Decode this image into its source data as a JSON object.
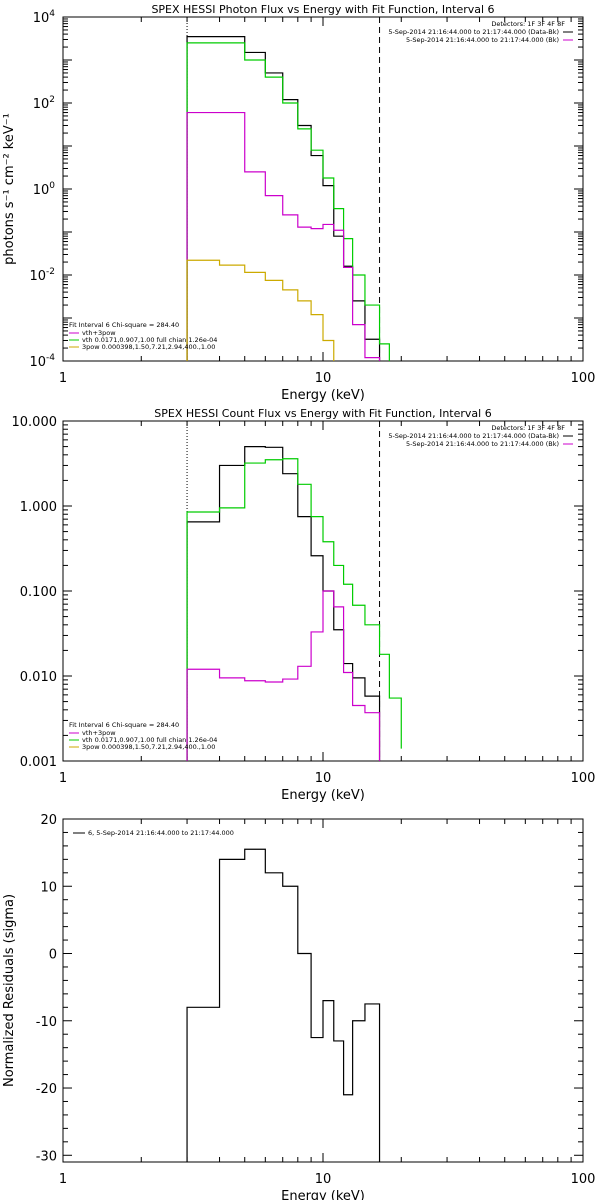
{
  "chart_data": [
    {
      "type": "line",
      "title": "SPEX HESSI Photon Flux vs Energy with Fit Function, Interval 6",
      "xlabel": "Energy (keV)",
      "ylabel": "photons s⁻¹ cm⁻² keV⁻¹",
      "xscale": "log",
      "yscale": "log",
      "xlim": [
        1,
        100
      ],
      "ylim": [
        0.0001,
        10000
      ],
      "xticks": [
        {
          "v": 1,
          "label": "1"
        },
        {
          "v": 10,
          "label": "10"
        },
        {
          "v": 100,
          "label": "100"
        }
      ],
      "yticks": [
        {
          "v": 0.0001,
          "base": "10",
          "exp": "-4"
        },
        {
          "v": 0.01,
          "base": "10",
          "exp": "-2"
        },
        {
          "v": 1,
          "base": "10",
          "exp": "0"
        },
        {
          "v": 100,
          "base": "10",
          "exp": "2"
        },
        {
          "v": 10000,
          "base": "10",
          "exp": "4"
        }
      ],
      "vlines": [
        {
          "x": 3.0,
          "style": "dotted"
        },
        {
          "x": 16.5,
          "style": "dashed"
        }
      ],
      "legend_top": [
        "Detectors: 1F 3F 4F 8F",
        "5-Sep-2014 21:16:44.000 to 21:17:44.000 (Data-Bk)",
        "5-Sep-2014 21:16:44.000 to 21:17:44.000 (Bk)"
      ],
      "legend_bottom_head": "Fit Interval  6    Chi-square = 284.40",
      "legend_bottom": [
        "vth+3pow",
        "vth 0.0171,0.907,1.00  full chian 1.26e-04",
        "3pow 0.000398,1.50,7.21,2.94,400.,1.00"
      ],
      "series": [
        {
          "color": "#000000",
          "edges": [
            3.0,
            4.0,
            5.0,
            6.0,
            7.0,
            8.0,
            9.0,
            10.0,
            11.0,
            12.0,
            13.0,
            14.5,
            16.5
          ],
          "values": [
            3500,
            3500,
            1500,
            500,
            120,
            30,
            6,
            1.2,
            0.08,
            0.016,
            0.0025,
            0.00032
          ]
        },
        {
          "color": "#00cc00",
          "edges": [
            3.0,
            4.0,
            5.0,
            6.0,
            7.0,
            8.0,
            9.0,
            10.0,
            11.0,
            12.0,
            13.0,
            14.5,
            16.5,
            18.0
          ],
          "values": [
            2500,
            2500,
            1000,
            400,
            100,
            25,
            8,
            1.8,
            0.35,
            0.07,
            0.01,
            0.002,
            0.00025
          ]
        },
        {
          "color": "#cc00cc",
          "edges": [
            3.0,
            4.0,
            5.0,
            6.0,
            7.0,
            8.0,
            9.0,
            10.0,
            11.0,
            12.0,
            13.0,
            14.5,
            16.5
          ],
          "values": [
            60,
            60,
            2.5,
            0.7,
            0.25,
            0.13,
            0.12,
            0.15,
            0.11,
            0.015,
            0.0007,
            0.00012
          ]
        },
        {
          "color": "#ccaa00",
          "edges": [
            3.0,
            4.0,
            5.0,
            6.0,
            7.0,
            8.0,
            9.0,
            10.0,
            11.0
          ],
          "values": [
            0.022,
            0.017,
            0.0115,
            0.0075,
            0.0045,
            0.0025,
            0.0012,
            0.0003
          ]
        }
      ]
    },
    {
      "type": "line",
      "title": "SPEX HESSI Count Flux vs Energy with Fit Function, Interval 6",
      "xlabel": "Energy (keV)",
      "xscale": "log",
      "yscale": "log",
      "xlim": [
        1,
        100
      ],
      "ylim": [
        0.001,
        10
      ],
      "xticks": [
        {
          "v": 1,
          "label": "1"
        },
        {
          "v": 10,
          "label": "10"
        },
        {
          "v": 100,
          "label": "100"
        }
      ],
      "yticks": [
        {
          "v": 0.001,
          "label": "0.001"
        },
        {
          "v": 0.01,
          "label": "0.010"
        },
        {
          "v": 0.1,
          "label": "0.100"
        },
        {
          "v": 1,
          "label": "1.000"
        },
        {
          "v": 10,
          "label": "10.000"
        }
      ],
      "vlines": [
        {
          "x": 3.0,
          "style": "dotted"
        },
        {
          "x": 16.5,
          "style": "dashed"
        }
      ],
      "legend_top": [
        "Detectors: 1F 3F 4F 8F",
        "5-Sep-2014 21:16:44.000 to 21:17:44.000 (Data-Bk)",
        "5-Sep-2014 21:16:44.000 to 21:17:44.000 (Bk)"
      ],
      "legend_bottom_head": "Fit Interval  6    Chi-square = 284.40",
      "legend_bottom": [
        "vth+3pow",
        "vth 0.0171,0.907,1.00  full chian 1.26e-04",
        "3pow 0.000398,1.50,7.21,2.94,400.,1.00"
      ],
      "series": [
        {
          "color": "#000000",
          "edges": [
            3.0,
            4.0,
            5.0,
            6.0,
            7.0,
            8.0,
            9.0,
            10.0,
            11.0,
            12.0,
            13.0,
            14.5,
            16.5
          ],
          "values": [
            0.65,
            3.0,
            5.0,
            4.9,
            2.4,
            0.75,
            0.26,
            0.1,
            0.035,
            0.014,
            0.0095,
            0.0058
          ]
        },
        {
          "color": "#00cc00",
          "edges": [
            3.0,
            4.0,
            5.0,
            6.0,
            7.0,
            8.0,
            9.0,
            10.0,
            11.0,
            12.0,
            13.0,
            14.5,
            16.5,
            18.0,
            20.0
          ],
          "values": [
            0.85,
            0.95,
            3.2,
            3.5,
            3.6,
            1.8,
            0.75,
            0.38,
            0.2,
            0.12,
            0.068,
            0.04,
            0.018,
            0.0055,
            0.0014
          ]
        },
        {
          "color": "#cc00cc",
          "edges": [
            3.0,
            4.0,
            5.0,
            6.0,
            7.0,
            8.0,
            9.0,
            10.0,
            11.0,
            12.0,
            13.0,
            14.5,
            16.5
          ],
          "values": [
            0.012,
            0.0095,
            0.0088,
            0.0085,
            0.0092,
            0.013,
            0.033,
            0.1,
            0.065,
            0.011,
            0.0045,
            0.0037
          ]
        }
      ]
    },
    {
      "type": "line",
      "xlabel": "Energy (keV)",
      "ylabel": "Normalized Residuals (sigma)",
      "xscale": "log",
      "xlim": [
        1,
        100
      ],
      "ylim": [
        -31,
        20
      ],
      "xticks": [
        {
          "v": 1,
          "label": "1"
        },
        {
          "v": 10,
          "label": "10"
        },
        {
          "v": 100,
          "label": "100"
        }
      ],
      "yticks": [
        {
          "v": -30,
          "label": "-30"
        },
        {
          "v": -20,
          "label": "-20"
        },
        {
          "v": -10,
          "label": "-10"
        },
        {
          "v": 0,
          "label": "0"
        },
        {
          "v": 10,
          "label": "10"
        },
        {
          "v": 20,
          "label": "20"
        }
      ],
      "vlines": [],
      "legend_top": [],
      "legend_left": "6,  5-Sep-2014 21:16:44.000 to 21:17:44.000",
      "legend_bottom": [],
      "series": [
        {
          "color": "#000000",
          "edges": [
            3.0,
            4.0,
            5.0,
            6.0,
            7.0,
            8.0,
            9.0,
            10.0,
            11.0,
            12.0,
            13.0,
            14.5,
            16.5
          ],
          "values": [
            -8,
            14,
            15.5,
            12,
            10,
            0,
            -12.5,
            -7,
            -13,
            -21,
            -10,
            -7.5
          ],
          "drop_to_bottom": true
        }
      ]
    }
  ]
}
